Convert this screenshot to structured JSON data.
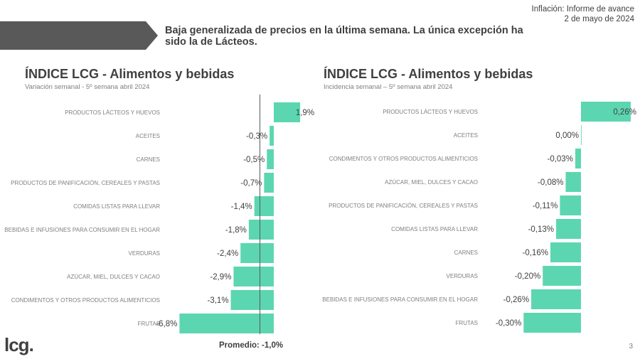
{
  "header": {
    "headline": "Baja generalizada  de precios en la última semana. La única excepción ha sido la de Lácteos.",
    "report_title": "Inflación: Informe de avance",
    "report_date": "2 de mayo de 2024"
  },
  "footer": {
    "logo": "lcg.",
    "page_number": "3"
  },
  "colors": {
    "bar": "#5cd6b0",
    "banner": "#595959",
    "text": "#404040"
  },
  "chart_data": [
    {
      "type": "bar",
      "orientation": "horizontal",
      "title": "ÍNDICE LCG - Alimentos y bebidas",
      "subtitle": "Variación semanal - 5º semana abril 2024",
      "categories": [
        "PRODUCTOS LÁCTEOS Y HUEVOS",
        "ACEITES",
        "CARNES",
        "PRODUCTOS DE PANIFICACIÓN, CEREALES Y PASTAS",
        "COMIDAS LISTAS PARA LLEVAR",
        "BEBIDAS E INFUSIONES PARA CONSUMIR EN EL HOGAR",
        "VERDURAS",
        "AZÚCAR, MIEL, DULCES Y CACAO",
        "CONDIMENTOS Y OTROS PRODUCTOS ALIMENTICIOS",
        "FRUTAS"
      ],
      "values": [
        1.9,
        -0.3,
        -0.5,
        -0.7,
        -1.4,
        -1.8,
        -2.4,
        -2.9,
        -3.1,
        -6.8
      ],
      "labels": [
        "1,9%",
        "-0,3%",
        "-0,5%",
        "-0,7%",
        "-1,4%",
        "-1,8%",
        "-2,4%",
        "-2,9%",
        "-3,1%",
        "-6,8%"
      ],
      "unit": "%",
      "reference_line": {
        "value": -1.0,
        "label": "Promedio: -1,0%"
      }
    },
    {
      "type": "bar",
      "orientation": "horizontal",
      "title": "ÍNDICE LCG - Alimentos y bebidas",
      "subtitle": "Incidencia semanal – 5º semana abril 2024",
      "categories": [
        "PRODUCTOS LÁCTEOS Y HUEVOS",
        "ACEITES",
        "CONDIMENTOS Y OTROS PRODUCTOS ALIMENTICIOS",
        "AZÚCAR, MIEL, DULCES Y CACAO",
        "PRODUCTOS DE PANIFICACIÓN, CEREALES Y PASTAS",
        "COMIDAS LISTAS PARA LLEVAR",
        "CARNES",
        "VERDURAS",
        "BEBIDAS E INFUSIONES PARA CONSUMIR EN EL HOGAR",
        "FRUTAS"
      ],
      "values": [
        0.26,
        0.0,
        -0.03,
        -0.08,
        -0.11,
        -0.13,
        -0.16,
        -0.2,
        -0.26,
        -0.3
      ],
      "labels": [
        "0,26%",
        "0,00%",
        "-0,03%",
        "-0,08%",
        "-0,11%",
        "-0,13%",
        "-0,16%",
        "-0,20%",
        "-0,26%",
        "-0,30%"
      ],
      "unit": "%"
    }
  ]
}
